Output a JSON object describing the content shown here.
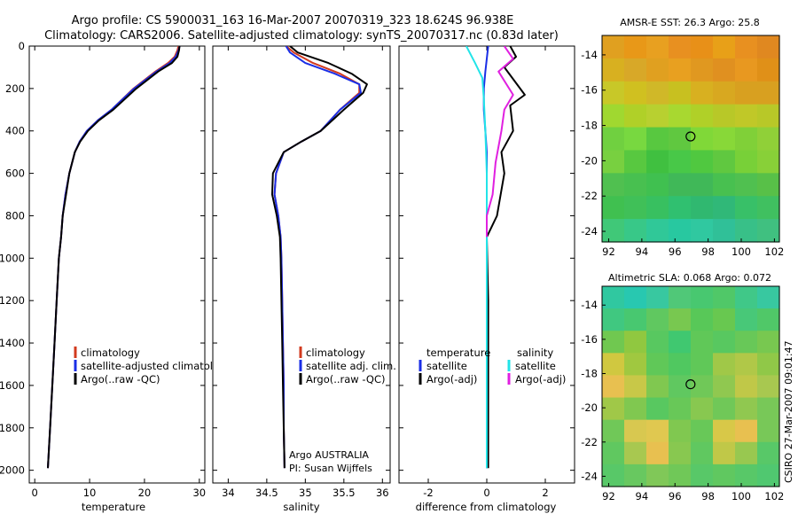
{
  "figure": {
    "title_line1": "Argo profile: CS 5900031_163 16-Mar-2007 20070319_323 18.624S 96.938E",
    "title_line2": "Climatology: CARS2006. Satellite-adjusted climatology: synTS_20070317.nc (0.83d later)",
    "credit": "CSIRO 27-Mar-2007 09:01:47",
    "argo_label": "Argo AUSTRALIA",
    "pi_label": "PI: Susan Wijffels"
  },
  "colors": {
    "climatology": "#d23a1e",
    "satellite": "#1a2ee6",
    "argo": "#000000",
    "salinity_satellite": "#22e4e8",
    "salinity_argo": "#e020e0"
  },
  "chart_data": [
    {
      "type": "line",
      "id": "temperature",
      "xlabel": "temperature",
      "ylabel": "",
      "xlim": [
        -1,
        31
      ],
      "ylim": [
        2060,
        0
      ],
      "y_reversed": true,
      "xticks": [
        0,
        10,
        20,
        30
      ],
      "yticks": [
        0,
        200,
        400,
        600,
        800,
        1000,
        1200,
        1400,
        1600,
        1800,
        2000
      ],
      "legend": [
        "climatology",
        "satellite-adjusted climatology",
        "Argo(..raw -QC)"
      ],
      "series": [
        {
          "name": "climatology",
          "color_key": "climatology",
          "x": [
            26.2,
            26.0,
            25.5,
            24.3,
            22.0,
            18.0,
            14.0,
            11.5,
            9.5,
            8.2,
            7.3,
            6.3,
            5.6,
            5.1,
            4.8,
            4.4,
            4.0,
            3.6,
            3.2,
            2.8,
            2.4
          ],
          "y": [
            0,
            20,
            50,
            80,
            120,
            200,
            300,
            350,
            400,
            450,
            500,
            600,
            700,
            800,
            900,
            1000,
            1200,
            1400,
            1600,
            1800,
            1990
          ]
        },
        {
          "name": "satellite-adjusted climatology",
          "color_key": "satellite",
          "x": [
            26.4,
            26.2,
            25.7,
            24.6,
            22.2,
            18.1,
            14.0,
            11.5,
            9.5,
            8.2,
            7.3,
            6.3,
            5.6,
            5.1,
            4.8,
            4.4,
            4.0,
            3.6,
            3.2,
            2.8,
            2.4
          ],
          "y": [
            0,
            20,
            50,
            80,
            120,
            200,
            300,
            350,
            400,
            450,
            500,
            600,
            700,
            800,
            900,
            1000,
            1200,
            1400,
            1600,
            1800,
            1990
          ]
        },
        {
          "name": "Argo(..raw -QC)",
          "color_key": "argo",
          "x": [
            26.4,
            26.3,
            26.0,
            25.0,
            22.5,
            18.5,
            14.3,
            11.7,
            9.7,
            8.3,
            7.3,
            6.3,
            5.7,
            5.1,
            4.8,
            4.4,
            4.0,
            3.6,
            3.2,
            2.8,
            2.4
          ],
          "y": [
            0,
            20,
            50,
            80,
            120,
            200,
            300,
            350,
            400,
            450,
            500,
            600,
            700,
            800,
            900,
            1000,
            1200,
            1400,
            1600,
            1800,
            1990
          ]
        }
      ]
    },
    {
      "type": "line",
      "id": "salinity",
      "xlabel": "salinity",
      "ylabel": "",
      "xlim": [
        33.8,
        36.1
      ],
      "ylim": [
        2060,
        0
      ],
      "y_reversed": true,
      "xticks": [
        34,
        34.5,
        35,
        35.5,
        36
      ],
      "legend": [
        "climatology",
        "satellite adj. clim.",
        "Argo(..raw -QC)"
      ],
      "series": [
        {
          "name": "climatology",
          "color_key": "climatology",
          "x": [
            34.75,
            34.85,
            35.1,
            35.45,
            35.7,
            35.7,
            35.45,
            35.2,
            34.95,
            34.72,
            34.62,
            34.6,
            34.65,
            34.68,
            34.69,
            34.7,
            34.71,
            34.72,
            34.72,
            34.73
          ],
          "y": [
            0,
            30,
            80,
            130,
            180,
            220,
            300,
            400,
            450,
            500,
            600,
            700,
            800,
            900,
            1000,
            1200,
            1400,
            1600,
            1800,
            1990
          ]
        },
        {
          "name": "satellite adj. clim.",
          "color_key": "satellite",
          "x": [
            34.75,
            34.8,
            35.0,
            35.38,
            35.7,
            35.72,
            35.45,
            35.2,
            34.95,
            34.72,
            34.62,
            34.6,
            34.65,
            34.68,
            34.69,
            34.7,
            34.71,
            34.72,
            34.72,
            34.73
          ],
          "y": [
            0,
            30,
            80,
            130,
            180,
            220,
            300,
            400,
            450,
            500,
            600,
            700,
            800,
            900,
            1000,
            1200,
            1400,
            1600,
            1800,
            1990
          ]
        },
        {
          "name": "Argo(..raw -QC)",
          "color_key": "argo",
          "x": [
            34.8,
            34.9,
            35.3,
            35.6,
            35.8,
            35.75,
            35.5,
            35.2,
            34.95,
            34.72,
            34.58,
            34.57,
            34.63,
            34.67,
            34.68,
            34.69,
            34.7,
            34.71,
            34.72,
            34.73
          ],
          "y": [
            0,
            30,
            80,
            130,
            180,
            220,
            300,
            400,
            450,
            500,
            600,
            700,
            800,
            900,
            1000,
            1200,
            1400,
            1600,
            1800,
            1990
          ]
        }
      ]
    },
    {
      "type": "line",
      "id": "difference",
      "xlabel": "difference from climatology",
      "ylabel": "",
      "xlim": [
        -3,
        3
      ],
      "ylim": [
        2060,
        0
      ],
      "y_reversed": true,
      "xticks": [
        -2,
        0,
        2
      ],
      "legend_groups": [
        {
          "title": "temperature",
          "entries": [
            "satellite",
            "Argo(-adj)"
          ]
        },
        {
          "title": "salinity",
          "entries": [
            "satellite",
            "Argo(-adj)"
          ]
        }
      ],
      "series": [
        {
          "name": "satellite",
          "group": "temperature",
          "color_key": "satellite",
          "x": [
            0.05,
            0.0,
            -0.05,
            -0.1,
            -0.1,
            -0.05,
            0.0,
            0.0,
            0.0,
            0.0,
            0.0,
            0.0
          ],
          "y": [
            0,
            60,
            120,
            200,
            300,
            400,
            500,
            600,
            700,
            800,
            1000,
            1990
          ]
        },
        {
          "name": "Argo(-adj)",
          "group": "temperature",
          "color_key": "argo",
          "x": [
            0.8,
            1.0,
            0.6,
            1.3,
            0.8,
            0.9,
            0.5,
            0.6,
            0.35,
            0.0,
            0.05,
            0.05
          ],
          "y": [
            0,
            50,
            100,
            230,
            280,
            400,
            500,
            600,
            800,
            900,
            1200,
            1990
          ]
        },
        {
          "name": "satellite",
          "group": "salinity",
          "color_key": "salinity_satellite",
          "x": [
            -0.7,
            -0.4,
            -0.15,
            -0.1,
            -0.05,
            0.0,
            0.0,
            0.0,
            0.0,
            0.0
          ],
          "y": [
            0,
            80,
            150,
            250,
            400,
            600,
            800,
            1000,
            1500,
            1990
          ]
        },
        {
          "name": "Argo(-adj)",
          "group": "salinity",
          "color_key": "salinity_argo",
          "x": [
            0.6,
            0.9,
            0.4,
            0.9,
            0.6,
            0.5,
            0.3,
            0.2,
            0.0,
            0.0
          ],
          "y": [
            0,
            60,
            120,
            230,
            300,
            400,
            550,
            700,
            800,
            900
          ]
        }
      ]
    },
    {
      "type": "heatmap",
      "id": "sst-map",
      "title": "AMSR-E SST: 26.3 Argo: 25.8",
      "xlim": [
        91.6,
        102.3
      ],
      "ylim": [
        -24.6,
        -12.9
      ],
      "xticks": [
        92,
        94,
        96,
        98,
        100,
        102
      ],
      "yticks": [
        -14,
        -16,
        -18,
        -20,
        -22,
        -24
      ],
      "marker": {
        "lon": 96.938,
        "lat": -18.624
      },
      "color_rows_north_to_south": [
        [
          "#e0a020",
          "#e89818",
          "#e8a020",
          "#e89020",
          "#e89018",
          "#e8a018",
          "#e89020",
          "#e08820"
        ],
        [
          "#d8b020",
          "#d8a828",
          "#e0a020",
          "#e8a020",
          "#e09820",
          "#e09020",
          "#e89820",
          "#e09018"
        ],
        [
          "#c8c828",
          "#d0c020",
          "#d0b828",
          "#c8c020",
          "#d8b020",
          "#d8a820",
          "#d8a020",
          "#d8a020"
        ],
        [
          "#a0d830",
          "#b0d028",
          "#b8d030",
          "#a8d830",
          "#b0d028",
          "#b8c828",
          "#c0c828",
          "#b8c828"
        ],
        [
          "#70d040",
          "#78d840",
          "#58c840",
          "#60c840",
          "#80d838",
          "#88d838",
          "#80d038",
          "#90d038"
        ],
        [
          "#78d040",
          "#58c840",
          "#40c040",
          "#48c848",
          "#50c840",
          "#60c840",
          "#78d038",
          "#88d038"
        ],
        [
          "#50c050",
          "#48c050",
          "#40c050",
          "#40b858",
          "#40b858",
          "#48c050",
          "#50c050",
          "#58c048"
        ],
        [
          "#40c050",
          "#40c058",
          "#38c060",
          "#30c070",
          "#30b870",
          "#30b878",
          "#38c068",
          "#40c060"
        ],
        [
          "#40c878",
          "#38c888",
          "#30c898",
          "#28c8a0",
          "#30c8a0",
          "#30c098",
          "#38c088",
          "#40c080"
        ]
      ]
    },
    {
      "type": "heatmap",
      "id": "sla-map",
      "title": "Altimetric SLA: 0.068 Argo: 0.072",
      "xlim": [
        91.6,
        102.3
      ],
      "ylim": [
        -24.6,
        -12.9
      ],
      "xticks": [
        92,
        94,
        96,
        98,
        100,
        102
      ],
      "yticks": [
        -14,
        -16,
        -18,
        -20,
        -22,
        -24
      ],
      "marker": {
        "lon": 96.938,
        "lat": -18.624
      },
      "color_rows_north_to_south": [
        [
          "#30c8a0",
          "#28c8b0",
          "#38c8a0",
          "#50c878",
          "#48c870",
          "#50c868",
          "#40c888",
          "#38c8a0"
        ],
        [
          "#40c880",
          "#48c870",
          "#60c860",
          "#78c850",
          "#58c858",
          "#68c850",
          "#48c878",
          "#50c868"
        ],
        [
          "#70c850",
          "#90c840",
          "#58c860",
          "#40c870",
          "#60c858",
          "#58c860",
          "#68c858",
          "#78c850"
        ],
        [
          "#d0c840",
          "#a0c840",
          "#60c858",
          "#50c860",
          "#60c858",
          "#a0c848",
          "#b0c848",
          "#90c848"
        ],
        [
          "#e8c050",
          "#c8c848",
          "#80c850",
          "#60c860",
          "#70c858",
          "#90c850",
          "#c0c848",
          "#a8c850"
        ],
        [
          "#a0c848",
          "#80c850",
          "#58c860",
          "#68c858",
          "#88c850",
          "#70c858",
          "#90c850",
          "#78c858"
        ],
        [
          "#70c858",
          "#d8c850",
          "#e0c850",
          "#80c850",
          "#68c858",
          "#d8c848",
          "#e8c050",
          "#78c858"
        ],
        [
          "#60c860",
          "#a8c850",
          "#e8c050",
          "#88c850",
          "#60c860",
          "#c0c848",
          "#98c850",
          "#58c868"
        ],
        [
          "#58c868",
          "#68c860",
          "#80c858",
          "#70c858",
          "#58c868",
          "#60c860",
          "#58c868",
          "#50c870"
        ]
      ]
    }
  ]
}
